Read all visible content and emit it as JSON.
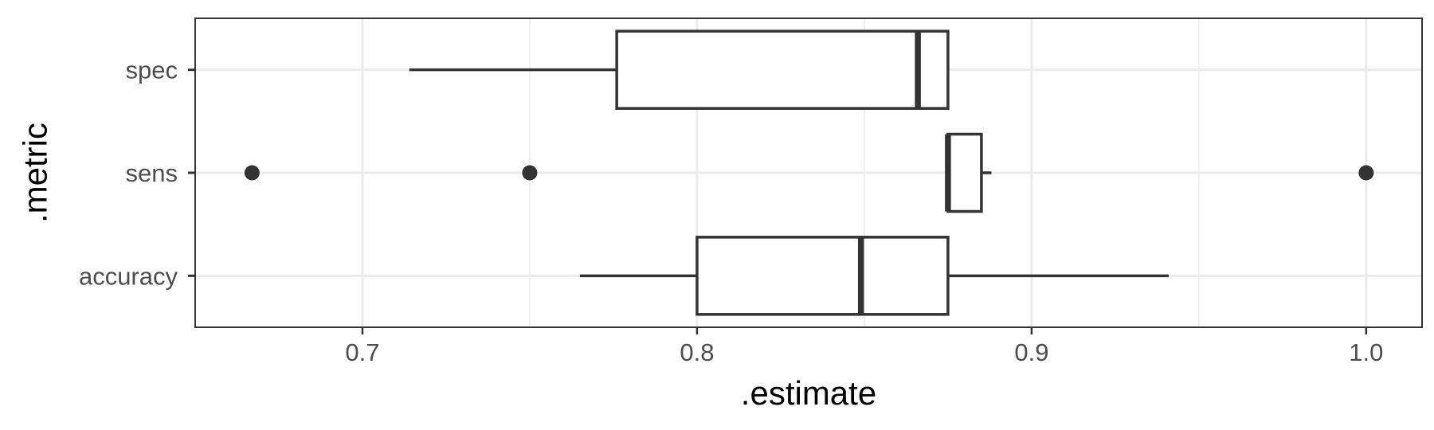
{
  "chart_data": {
    "type": "boxplot",
    "orientation": "horizontal",
    "title": "",
    "xlabel": ".estimate",
    "ylabel": ".metric",
    "xlim": [
      0.65,
      1.0167
    ],
    "x_ticks": [
      0.7,
      0.8,
      0.9,
      1.0
    ],
    "x_tick_labels": [
      "0.7",
      "0.8",
      "0.9",
      "1.0"
    ],
    "x_minor_ticks": [
      0.75,
      0.85,
      0.95
    ],
    "categories": [
      "spec",
      "sens",
      "accuracy"
    ],
    "boxes": [
      {
        "category": "spec",
        "whisker_low": 0.714,
        "q1": 0.776,
        "median": 0.866,
        "q3": 0.875,
        "whisker_high": 0.875,
        "outliers": []
      },
      {
        "category": "sens",
        "whisker_low": 0.875,
        "q1": 0.875,
        "median": 0.875,
        "q3": 0.885,
        "whisker_high": 0.888,
        "outliers": [
          0.667,
          0.75,
          1.0
        ]
      },
      {
        "category": "accuracy",
        "whisker_low": 0.765,
        "q1": 0.8,
        "median": 0.849,
        "q3": 0.875,
        "whisker_high": 0.941,
        "outliers": []
      }
    ],
    "grid": true,
    "legend": "none",
    "colors": {
      "box_fill": "#ffffff",
      "box_line": "#333333",
      "point": "#333333",
      "grid": "#ebebeb",
      "panel_border": "#333333"
    }
  }
}
